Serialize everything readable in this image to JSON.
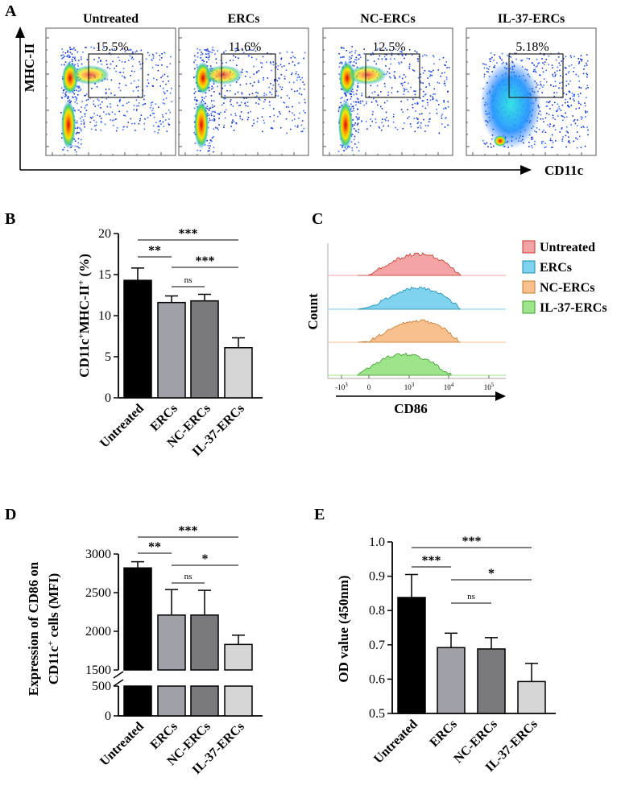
{
  "panels": {
    "A": "A",
    "B": "B",
    "C": "C",
    "D": "D",
    "E": "E"
  },
  "colors": {
    "untreated": "#000000",
    "ercs": "#a0a0a8",
    "nc_ercs": "#7a7a7e",
    "il37_ercs": "#d6d6d6",
    "hist_untreated": "#f4a4a4",
    "hist_ercs": "#7fd3ee",
    "hist_nc_ercs": "#f7c08d",
    "hist_il37_ercs": "#9ee48a"
  },
  "chart_data": [
    {
      "panel": "A",
      "type": "scatter",
      "subtype": "flow-cytometry-density",
      "ylabel": "MHC-II",
      "xlabel": "CD11c",
      "plots": [
        {
          "title": "Untreated",
          "gate_pct": "15.5%"
        },
        {
          "title": "ERCs",
          "gate_pct": "11.6%"
        },
        {
          "title": "NC-ERCs",
          "gate_pct": "12.5%"
        },
        {
          "title": "IL-37-ERCs",
          "gate_pct": "5.18%"
        }
      ]
    },
    {
      "panel": "B",
      "type": "bar",
      "categories": [
        "Untreated",
        "ERCs",
        "NC-ERCs",
        "IL-37-ERCs"
      ],
      "values": [
        14.3,
        11.6,
        11.8,
        6.1
      ],
      "errors": [
        1.5,
        0.8,
        0.8,
        1.2
      ],
      "ylabel_main": "CD11c",
      "ylabel_sup1": "+",
      "ylabel_mid": "MHC-II",
      "ylabel_sup2": "+",
      "ylabel_end": " (%)",
      "ylim": [
        0,
        20
      ],
      "yticks": [
        0,
        5,
        10,
        15,
        20
      ],
      "significance": [
        {
          "from": 0,
          "to": 1,
          "label": "**"
        },
        {
          "from": 0,
          "to": 3,
          "label": "***"
        },
        {
          "from": 1,
          "to": 2,
          "label": "ns"
        },
        {
          "from": 1,
          "to": 3,
          "label": "***"
        }
      ]
    },
    {
      "panel": "C",
      "type": "area",
      "subtype": "histogram-overlay",
      "xlabel": "CD86",
      "ylabel": "Count",
      "xticks": [
        "-10",
        "0",
        "10",
        "10",
        "10"
      ],
      "xtick_exp": [
        "3",
        "",
        "3",
        "4",
        "5"
      ],
      "legend": [
        "Untreated",
        "ERCs",
        "NC-ERCs",
        "IL-37-ERCs"
      ]
    },
    {
      "panel": "D",
      "type": "bar",
      "categories": [
        "Untreated",
        "ERCs",
        "NC-ERCs",
        "IL-37-ERCs"
      ],
      "values": [
        2820,
        2210,
        2210,
        1830
      ],
      "errors": [
        80,
        330,
        320,
        120
      ],
      "ylabel_line1": "Expression of CD86 on",
      "ylabel_line2a": "CD11c",
      "ylabel_sup": "+",
      "ylabel_line2b": " cells (MFI)",
      "axis_break": true,
      "yticks": [
        0,
        500,
        1500,
        2000,
        2500,
        3000
      ],
      "significance": [
        {
          "from": 0,
          "to": 1,
          "label": "**"
        },
        {
          "from": 0,
          "to": 3,
          "label": "***"
        },
        {
          "from": 1,
          "to": 2,
          "label": "ns"
        },
        {
          "from": 1,
          "to": 3,
          "label": "*"
        }
      ]
    },
    {
      "panel": "E",
      "type": "bar",
      "categories": [
        "Untreated",
        "ERCs",
        "NC-ERCs",
        "IL-37-ERCs"
      ],
      "values": [
        0.838,
        0.692,
        0.688,
        0.593
      ],
      "errors": [
        0.067,
        0.042,
        0.033,
        0.053
      ],
      "ylabel": "OD value (450nm)",
      "ylim": [
        0.5,
        1.0
      ],
      "yticks": [
        "0.5",
        "0.6",
        "0.7",
        "0.8",
        "0.9",
        "1.0"
      ],
      "significance": [
        {
          "from": 0,
          "to": 1,
          "label": "***"
        },
        {
          "from": 0,
          "to": 3,
          "label": "***"
        },
        {
          "from": 1,
          "to": 2,
          "label": "ns"
        },
        {
          "from": 1,
          "to": 3,
          "label": "*"
        }
      ]
    }
  ]
}
